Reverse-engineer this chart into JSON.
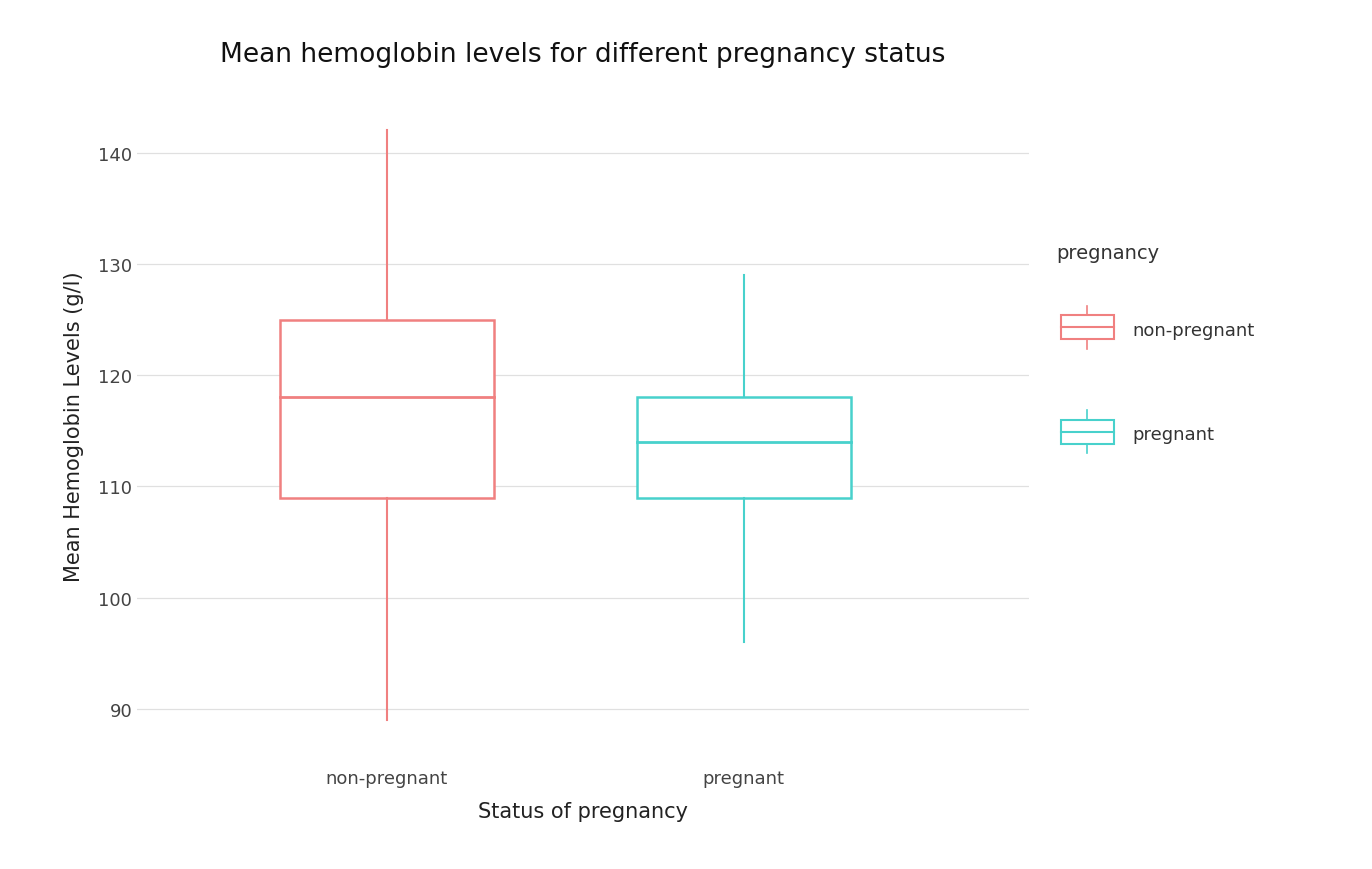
{
  "title": "Mean hemoglobin levels for different pregnancy status",
  "xlabel": "Status of pregnancy",
  "ylabel": "Mean Hemoglobin Levels (g/l)",
  "categories": [
    "non-pregnant",
    "pregnant"
  ],
  "boxes": [
    {
      "label": "non-pregnant",
      "color": "#F08080",
      "whisker_low": 89,
      "q1": 109,
      "median": 118,
      "q3": 125,
      "whisker_high": 142,
      "x": 1
    },
    {
      "label": "pregnant",
      "color": "#48D1CC",
      "whisker_low": 96,
      "q1": 109,
      "median": 114,
      "q3": 118,
      "whisker_high": 129,
      "x": 2
    }
  ],
  "ylim": [
    85,
    146
  ],
  "yticks": [
    90,
    100,
    110,
    120,
    130,
    140
  ],
  "xlim": [
    0.3,
    2.8
  ],
  "background_color": "#FFFFFF",
  "grid_color": "#E0E0E0",
  "box_width": 0.6,
  "legend_title": "pregnancy",
  "legend_entries": [
    "non-pregnant",
    "pregnant"
  ],
  "legend_colors": [
    "#F08080",
    "#48D1CC"
  ],
  "title_fontsize": 19,
  "axis_label_fontsize": 15,
  "tick_fontsize": 13,
  "legend_fontsize": 13
}
